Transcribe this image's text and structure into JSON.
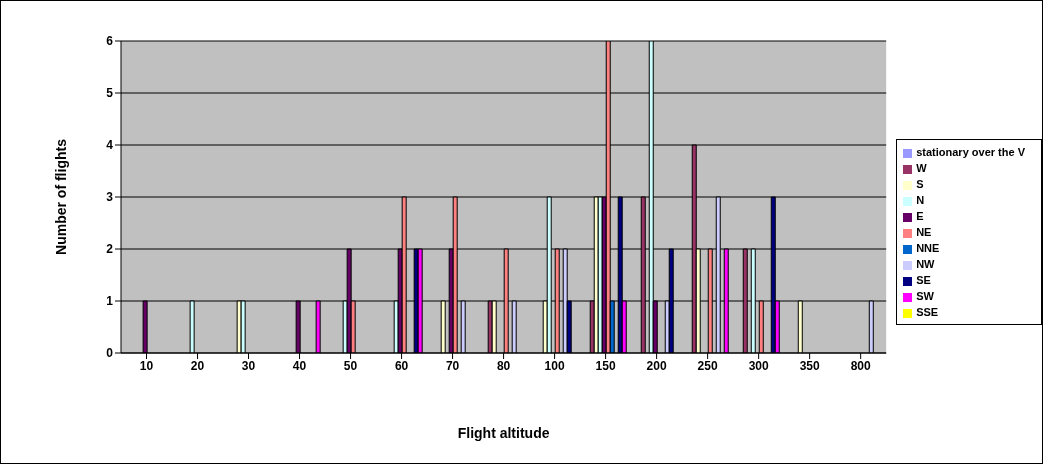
{
  "chart_data": {
    "type": "bar",
    "xlabel": "Flight altitude",
    "ylabel": "Number of flights",
    "categories": [
      "10",
      "20",
      "30",
      "40",
      "50",
      "60",
      "70",
      "80",
      "100",
      "150",
      "200",
      "250",
      "300",
      "350",
      "800"
    ],
    "ylim": [
      0,
      6
    ],
    "yticks": [
      0,
      1,
      2,
      3,
      4,
      5,
      6
    ],
    "grid": "y",
    "legend": "right",
    "series": [
      {
        "name": "stationary over the V",
        "color": "#9999ff",
        "values": [
          0,
          0,
          0,
          0,
          0,
          0,
          0,
          0,
          0,
          0,
          0,
          0,
          0,
          0,
          0
        ]
      },
      {
        "name": "W",
        "color": "#993366",
        "values": [
          0,
          0,
          0,
          0,
          0,
          0,
          0,
          1,
          0,
          1,
          3,
          4,
          2,
          0,
          0
        ]
      },
      {
        "name": "S",
        "color": "#ffffcc",
        "values": [
          0,
          0,
          1,
          0,
          0,
          0,
          1,
          1,
          1,
          3,
          0,
          2,
          0,
          1,
          0
        ]
      },
      {
        "name": "N",
        "color": "#ccffff",
        "values": [
          0,
          1,
          1,
          0,
          1,
          1,
          0,
          0,
          3,
          3,
          6,
          0,
          2,
          0,
          0
        ]
      },
      {
        "name": "E",
        "color": "#660066",
        "values": [
          1,
          0,
          0,
          1,
          2,
          2,
          2,
          0,
          0,
          3,
          1,
          0,
          0,
          0,
          0
        ]
      },
      {
        "name": "NE",
        "color": "#ff8080",
        "values": [
          0,
          0,
          0,
          0,
          1,
          3,
          3,
          2,
          2,
          6,
          0,
          2,
          1,
          0,
          0
        ]
      },
      {
        "name": "NNE",
        "color": "#0066cc",
        "values": [
          0,
          0,
          0,
          0,
          0,
          0,
          0,
          0,
          0,
          1,
          0,
          0,
          0,
          0,
          0
        ]
      },
      {
        "name": "NW",
        "color": "#ccccff",
        "values": [
          0,
          0,
          0,
          0,
          0,
          0,
          1,
          1,
          2,
          0,
          1,
          3,
          0,
          0,
          1
        ]
      },
      {
        "name": "SE",
        "color": "#000080",
        "values": [
          0,
          0,
          0,
          0,
          0,
          2,
          0,
          0,
          1,
          3,
          2,
          0,
          3,
          0,
          0
        ]
      },
      {
        "name": "SW",
        "color": "#ff00ff",
        "values": [
          0,
          0,
          0,
          1,
          0,
          2,
          0,
          0,
          0,
          1,
          0,
          2,
          1,
          0,
          0
        ]
      },
      {
        "name": "SSE",
        "color": "#ffff00",
        "values": [
          0,
          0,
          0,
          0,
          0,
          0,
          0,
          0,
          0,
          0,
          0,
          0,
          0,
          0,
          0
        ]
      }
    ]
  }
}
